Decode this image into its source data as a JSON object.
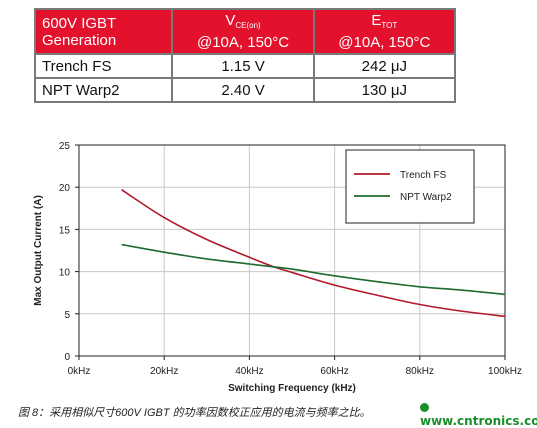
{
  "table": {
    "header": {
      "col1_line1": "600V IGBT",
      "col1_line2": "Generation",
      "col2_main": "V",
      "col2_sub": "CE(on)",
      "col2_line2": "@10A, 150°C",
      "col3_main": "E",
      "col3_sub": "TOT",
      "col3_line2": "@10A, 150°C"
    },
    "rows": [
      {
        "name": "Trench FS",
        "vce": "1.15 V",
        "etot": "242 μJ"
      },
      {
        "name": "NPT Warp2",
        "vce": "2.40 V",
        "etot": "130 μJ"
      }
    ]
  },
  "chart_data": {
    "type": "line",
    "xlabel": "Switching Frequency (kHz)",
    "ylabel": "Max Output Current (A)",
    "xlim": [
      0,
      100
    ],
    "ylim": [
      0,
      25
    ],
    "x_ticks": [
      "0kHz",
      "20kHz",
      "40kHz",
      "60kHz",
      "80kHz",
      "100kHz"
    ],
    "y_ticks": [
      "0",
      "5",
      "10",
      "15",
      "20",
      "25"
    ],
    "grid": true,
    "legend_position": "top-right",
    "series": [
      {
        "name": "Trench FS",
        "color": "#b01a2a",
        "x": [
          10,
          20,
          30,
          40,
          45,
          50,
          60,
          70,
          80,
          90,
          100
        ],
        "y": [
          19.7,
          16.4,
          13.8,
          11.7,
          10.7,
          9.9,
          8.4,
          7.2,
          6.1,
          5.3,
          4.7
        ]
      },
      {
        "name": "NPT Warp2",
        "color": "#1f6b30",
        "x": [
          10,
          20,
          30,
          40,
          45,
          50,
          60,
          70,
          80,
          90,
          100
        ],
        "y": [
          13.2,
          12.3,
          11.5,
          10.9,
          10.6,
          10.3,
          9.5,
          8.8,
          8.2,
          7.8,
          7.3
        ]
      }
    ]
  },
  "caption": "图 8：采用相似尺寸600V IGBT 的功率因数校正应用的电流与频率之比。",
  "watermark": "www.cntronics.com"
}
